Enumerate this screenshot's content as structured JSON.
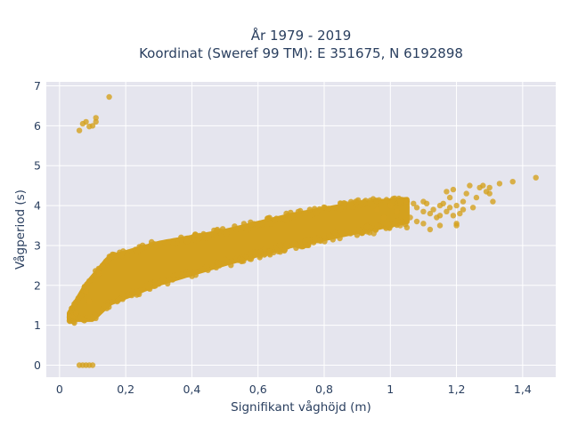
{
  "chart_data": {
    "type": "scatter",
    "title_lines": [
      "År 1979 - 2019",
      "Koordinat (Sweref 99 TM): E 351675, N 6192898"
    ],
    "xlabel": "Signifikant våghöjd (m)",
    "ylabel": "Vågperiod (s)",
    "xlim": [
      -0.04,
      1.5
    ],
    "ylim": [
      -0.3,
      7.1
    ],
    "xticks": [
      {
        "value": 0,
        "label": "0"
      },
      {
        "value": 0.2,
        "label": "0,2"
      },
      {
        "value": 0.4,
        "label": "0,4"
      },
      {
        "value": 0.6,
        "label": "0,6"
      },
      {
        "value": 0.8,
        "label": "0,8"
      },
      {
        "value": 1.0,
        "label": "1"
      },
      {
        "value": 1.2,
        "label": "1,2"
      },
      {
        "value": 1.4,
        "label": "1,4"
      }
    ],
    "yticks": [
      {
        "value": 0,
        "label": "0"
      },
      {
        "value": 1,
        "label": "1"
      },
      {
        "value": 2,
        "label": "2"
      },
      {
        "value": 3,
        "label": "3"
      },
      {
        "value": 4,
        "label": "4"
      },
      {
        "value": 5,
        "label": "5"
      },
      {
        "value": 6,
        "label": "6"
      },
      {
        "value": 7,
        "label": "7"
      }
    ],
    "grid": true,
    "marker_color": "#d4a11e",
    "plot_bg": "#e5e5ee",
    "grid_color": "#ffffff",
    "dense_band": {
      "x_start": 0.03,
      "x_end": 1.05,
      "lower": [
        [
          0.03,
          1.15
        ],
        [
          0.1,
          1.15
        ],
        [
          0.15,
          1.55
        ],
        [
          0.3,
          2.05
        ],
        [
          0.5,
          2.55
        ],
        [
          0.7,
          3.0
        ],
        [
          0.9,
          3.35
        ],
        [
          1.05,
          3.6
        ]
      ],
      "upper": [
        [
          0.03,
          1.3
        ],
        [
          0.08,
          2.0
        ],
        [
          0.15,
          2.7
        ],
        [
          0.3,
          3.05
        ],
        [
          0.5,
          3.35
        ],
        [
          0.7,
          3.75
        ],
        [
          0.9,
          4.05
        ],
        [
          1.05,
          4.15
        ]
      ]
    },
    "points": [
      [
        0.07,
        6.05
      ],
      [
        0.08,
        6.1
      ],
      [
        0.1,
        6.0
      ],
      [
        0.09,
        5.98
      ],
      [
        0.11,
        6.1
      ],
      [
        0.06,
        5.88
      ],
      [
        0.15,
        6.72
      ],
      [
        0.11,
        6.2
      ],
      [
        0.06,
        0.0
      ],
      [
        0.07,
        0.0
      ],
      [
        0.08,
        0.0
      ],
      [
        0.09,
        0.0
      ],
      [
        0.1,
        0.0
      ],
      [
        0.03,
        1.2
      ],
      [
        0.04,
        1.25
      ],
      [
        0.05,
        1.3
      ],
      [
        0.08,
        1.85
      ],
      [
        0.09,
        1.6
      ],
      [
        0.12,
        2.3
      ],
      [
        0.13,
        2.5
      ],
      [
        0.14,
        2.6
      ],
      [
        1.05,
        4.1
      ],
      [
        1.07,
        4.05
      ],
      [
        1.08,
        3.95
      ],
      [
        1.1,
        4.1
      ],
      [
        1.1,
        3.85
      ],
      [
        1.11,
        4.05
      ],
      [
        1.12,
        3.8
      ],
      [
        1.13,
        3.9
      ],
      [
        1.14,
        3.7
      ],
      [
        1.15,
        4.0
      ],
      [
        1.15,
        3.75
      ],
      [
        1.16,
        4.05
      ],
      [
        1.17,
        3.85
      ],
      [
        1.18,
        4.2
      ],
      [
        1.18,
        3.95
      ],
      [
        1.19,
        3.75
      ],
      [
        1.2,
        4.0
      ],
      [
        1.21,
        3.8
      ],
      [
        1.22,
        4.1
      ],
      [
        1.22,
        3.9
      ],
      [
        1.23,
        4.3
      ],
      [
        1.17,
        4.35
      ],
      [
        1.19,
        4.4
      ],
      [
        1.1,
        3.55
      ],
      [
        1.08,
        3.6
      ],
      [
        1.06,
        3.7
      ],
      [
        1.12,
        3.4
      ],
      [
        1.15,
        3.5
      ],
      [
        1.2,
        3.55
      ],
      [
        1.2,
        3.5
      ],
      [
        1.25,
        3.95
      ],
      [
        1.26,
        4.2
      ],
      [
        1.24,
        4.5
      ],
      [
        1.27,
        4.45
      ],
      [
        1.28,
        4.5
      ],
      [
        1.29,
        4.35
      ],
      [
        1.3,
        4.3
      ],
      [
        1.3,
        4.45
      ],
      [
        1.31,
        4.1
      ],
      [
        1.33,
        4.55
      ],
      [
        1.37,
        4.6
      ],
      [
        1.44,
        4.7
      ],
      [
        1.0,
        4.0
      ],
      [
        1.02,
        3.85
      ],
      [
        0.98,
        3.7
      ],
      [
        0.96,
        3.9
      ],
      [
        1.03,
        3.5
      ],
      [
        1.05,
        3.45
      ],
      [
        0.95,
        3.3
      ]
    ]
  }
}
